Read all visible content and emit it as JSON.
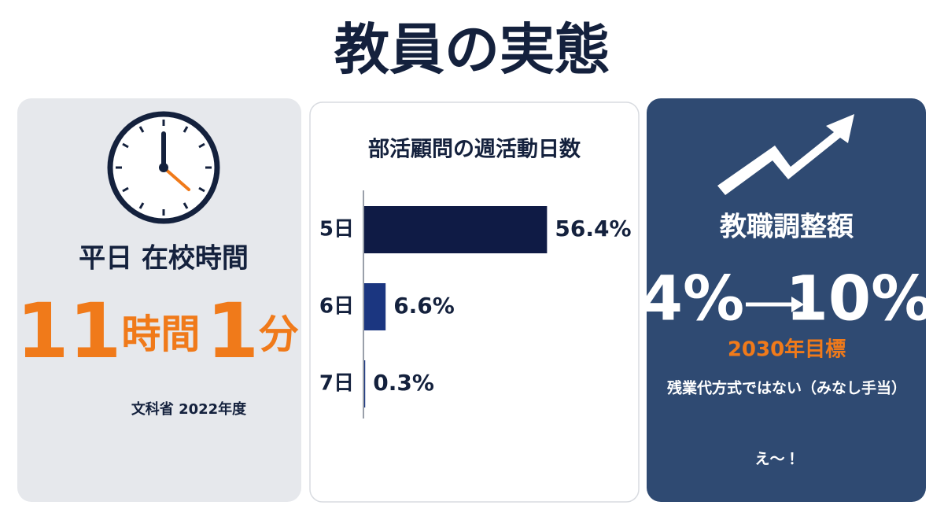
{
  "title": "教員の実態",
  "left_panel": {
    "label": "平日 在校時間",
    "time_parts": [
      "11",
      "時間",
      "1",
      "分"
    ],
    "source": "文科省 2022年度"
  },
  "chart_data": {
    "type": "bar",
    "orientation": "horizontal",
    "title": "部活顧問の週活動日数",
    "categories": [
      "5日",
      "6日",
      "7日"
    ],
    "values": [
      56.4,
      6.6,
      0.3
    ],
    "value_labels": [
      "56.4%",
      "6.6%",
      "0.3%"
    ],
    "colors": [
      "#0f1b45",
      "#1b3680",
      "#1b3680"
    ]
  },
  "right_panel": {
    "label": "教職調整額",
    "from": "4%",
    "to": "10%",
    "target": "2030年目標",
    "note": "残業代方式ではない（みなし手当）",
    "exclamation": "え〜！"
  }
}
